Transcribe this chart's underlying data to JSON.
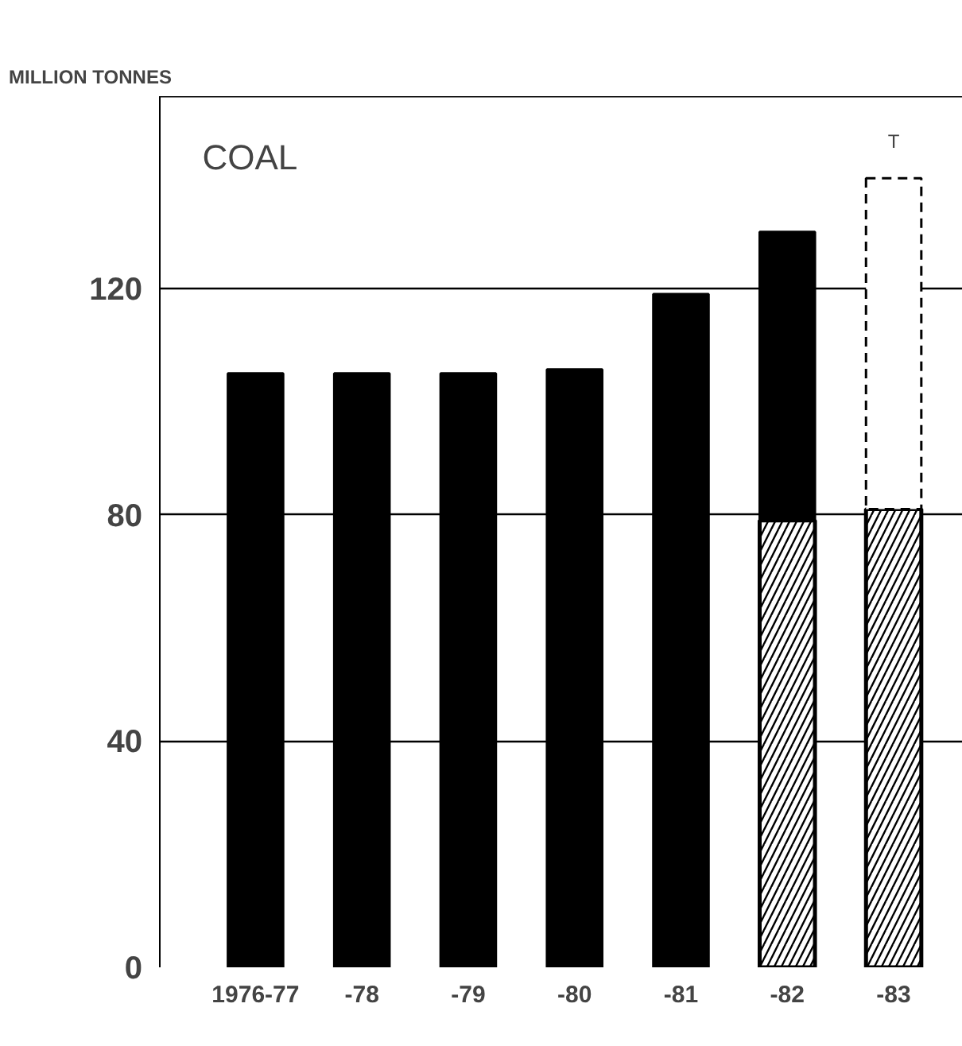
{
  "chart_data": {
    "type": "bar",
    "title": "COAL",
    "ylabel": "MILLION TONNES",
    "stacked": true,
    "categories": [
      "1976-77",
      "-78",
      "-79",
      "-80",
      "-81",
      "-82",
      "-83"
    ],
    "series": [
      {
        "color": "#ffffff",
        "values": [
          null,
          null,
          null,
          null,
          null,
          79,
          81
        ]
      },
      {
        "color": "#000000",
        "values": [
          105,
          105,
          105,
          105.7,
          119,
          51,
          null
        ]
      },
      {
        "color": "#ffffff",
        "line_style": "dashed",
        "values": [
          null,
          null,
          null,
          null,
          null,
          null,
          58.5
        ]
      }
    ],
    "annotations": [
      "T"
    ],
    "ylim": [
      0,
      154
    ],
    "yticks": [
      0,
      40,
      80,
      120
    ],
    "grid": "y"
  }
}
